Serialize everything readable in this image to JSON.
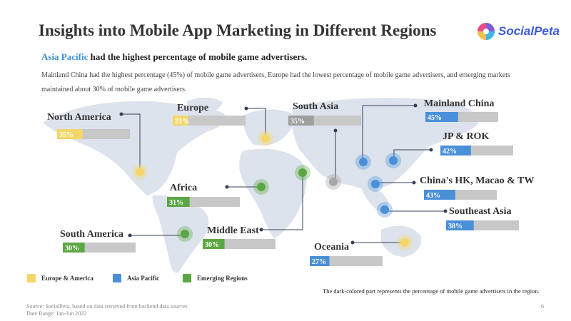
{
  "header": {
    "title": "Insights into Mobile App Marketing in Different Regions",
    "logo_text": "SocialPeta"
  },
  "headline": {
    "region": "Asia Pacific",
    "rest": " had the highest percentage of mobile game advertisers."
  },
  "description": "Mainland China had the highest percentage (45%) of mobile game advertisers, Europe had the lowest percentage of mobile game advertisers, and emerging markets maintained about 30% of mobile game advertisers.",
  "legend": [
    {
      "label": "Europe & America",
      "color": "#f5d769"
    },
    {
      "label": "Asia Pacific",
      "color": "#4a90d9"
    },
    {
      "label": "Emerging Regions",
      "color": "#5ba744"
    }
  ],
  "colors": {
    "europe_america": "#f5d769",
    "asia_pacific": "#4a90d9",
    "emerging": "#5ba744",
    "bar_bg": "#c8c8c8",
    "map": "#dde3ec"
  },
  "chart_data": {
    "type": "bar",
    "title": "",
    "xlabel": "",
    "ylabel": "",
    "ylim": [
      0,
      100
    ],
    "categories": [
      "North America",
      "Europe",
      "South Asia",
      "Mainland China",
      "JP & ROK",
      "China's HK, Macao & TW",
      "Africa",
      "Southeast Asia",
      "South America",
      "Middle East",
      "Oceania"
    ],
    "values": [
      35,
      21,
      35,
      45,
      42,
      43,
      31,
      38,
      30,
      30,
      27
    ],
    "value_labels": [
      "35%",
      "21%",
      "35%",
      "45%",
      "42%",
      "43%",
      "31%",
      "38%",
      "30%",
      "30%",
      "27%"
    ],
    "groups": [
      "Europe & America",
      "Europe & America",
      "Emerging Regions",
      "Asia Pacific",
      "Asia Pacific",
      "Asia Pacific",
      "Emerging Regions",
      "Asia Pacific",
      "Emerging Regions",
      "Emerging Regions",
      "Asia Pacific"
    ]
  },
  "note": "The dark-colored part represents the percentage of mobile game advertisers in the region.",
  "footer": {
    "source": "Source: SocialPeta, based on data retrieved from backend data sources",
    "date_range": "Date Range: Jan-Jun 2022",
    "page": "6"
  }
}
